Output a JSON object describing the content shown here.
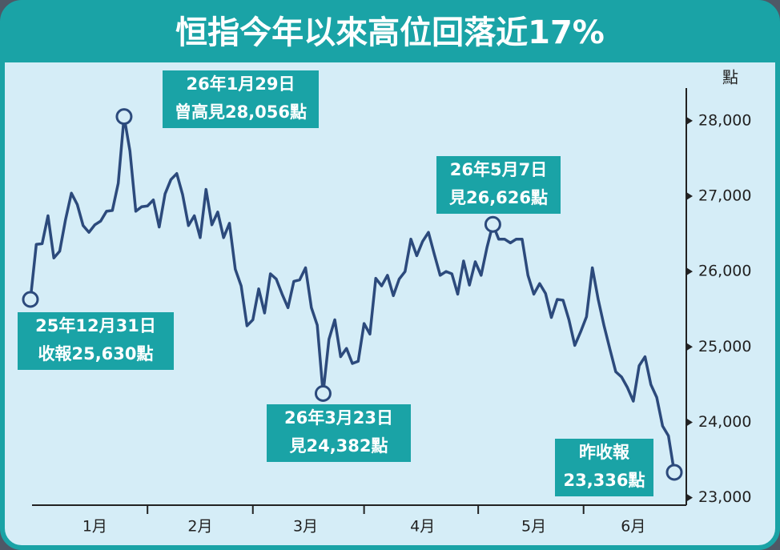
{
  "chart_data": {
    "type": "line",
    "title": "恒指今年以來高位回落近17%",
    "y_unit": "點",
    "categories": [
      null,
      null,
      null,
      null,
      null,
      null,
      null,
      null,
      null,
      null,
      null,
      "1月",
      null,
      null,
      null,
      null,
      null,
      null,
      null,
      null,
      null,
      null,
      null,
      null,
      null,
      null,
      null,
      null,
      null,
      "2月",
      null,
      null,
      null,
      null,
      null,
      null,
      null,
      null,
      null,
      null,
      null,
      null,
      null,
      null,
      null,
      null,
      null,
      "3月",
      null,
      null,
      null,
      null,
      null,
      null,
      null,
      null,
      null,
      null,
      null,
      null,
      null,
      null,
      null,
      null,
      null,
      null,
      null,
      "4月",
      null,
      null,
      null,
      null,
      null,
      null,
      null,
      null,
      null,
      null,
      null,
      null,
      null,
      null,
      null,
      null,
      null,
      null,
      "5月",
      null,
      null,
      null,
      null,
      null,
      null,
      null,
      null,
      null,
      null,
      null,
      null,
      null,
      null,
      null,
      null,
      "6月",
      null,
      null,
      null,
      null,
      null,
      null,
      null
    ],
    "series": [
      {
        "color": "#2c4a7c",
        "values": [
          25630,
          26360,
          26370,
          26740,
          26180,
          26270,
          26690,
          27040,
          26890,
          26610,
          26520,
          26620,
          26670,
          26800,
          26810,
          27170,
          28056,
          27600,
          26800,
          26860,
          26870,
          26950,
          26590,
          27030,
          27220,
          27300,
          27020,
          26610,
          26740,
          26450,
          27090,
          26620,
          26790,
          26450,
          26640,
          26030,
          25810,
          25280,
          25360,
          25770,
          25450,
          25970,
          25900,
          25700,
          25520,
          25870,
          25890,
          26050,
          25520,
          25290,
          24382,
          25100,
          25360,
          24870,
          24980,
          24780,
          24810,
          25310,
          25170,
          25910,
          25810,
          25950,
          25680,
          25900,
          26000,
          26430,
          26210,
          26400,
          26520,
          26230,
          25950,
          26000,
          25970,
          25700,
          26140,
          25820,
          26130,
          25950,
          26320,
          26626,
          26430,
          26430,
          26380,
          26430,
          26430,
          25950,
          25700,
          25840,
          25710,
          25390,
          25630,
          25620,
          25360,
          25020,
          25200,
          25400,
          26050,
          25630,
          25280,
          24970,
          24670,
          24600,
          24460,
          24280,
          24750,
          24870,
          24500,
          24330,
          23950,
          23820,
          23336
        ]
      }
    ],
    "ylim": [
      22900,
      28700
    ],
    "yticks": [
      {
        "value": 23000,
        "label": "23,000"
      },
      {
        "value": 24000,
        "label": "24,000"
      },
      {
        "value": 25000,
        "label": "25,000"
      },
      {
        "value": 26000,
        "label": "26,000"
      },
      {
        "value": 27000,
        "label": "27,000"
      },
      {
        "value": 28000,
        "label": "28,000"
      }
    ],
    "annotations": [
      {
        "lines": [
          "26年1月29日",
          "曾高見28,056點"
        ]
      },
      {
        "lines": [
          "25年12月31日",
          "收報25,630點"
        ]
      },
      {
        "lines": [
          "26年3月23日",
          "見24,382點"
        ]
      },
      {
        "lines": [
          "26年5月7日",
          "見26,626點"
        ]
      },
      {
        "lines": [
          "昨收報",
          "23,336點"
        ]
      }
    ]
  }
}
